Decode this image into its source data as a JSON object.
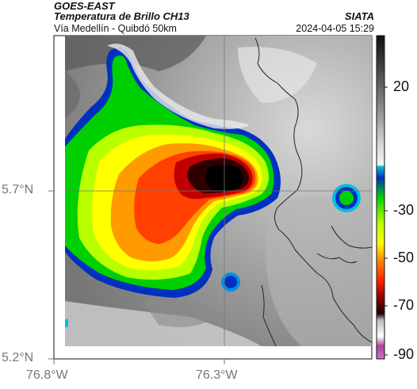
{
  "header": {
    "satellite": "GOES-EAST",
    "product": "Temperatura de Brillo CH13",
    "region": "Vía Medellín - Quibdó 50km",
    "organization": "SIATA",
    "datetime": "2024-04-05 15:29"
  },
  "axes": {
    "lat_ticks": [
      "5.7°N",
      "5.2°N"
    ],
    "lon_ticks": [
      "76.8°W",
      "76.3°W"
    ]
  },
  "colorbar": {
    "ticks": [
      "20",
      "-30",
      "-50",
      "-70",
      "-90"
    ]
  },
  "colors": {
    "cold_core": "#000000",
    "red": "#c00000",
    "orange": "#ff7a00",
    "yellow": "#ffff00",
    "green": "#00d000",
    "blue": "#0030c0",
    "cyan": "#00c0e0",
    "magenta": "#b040a0"
  }
}
